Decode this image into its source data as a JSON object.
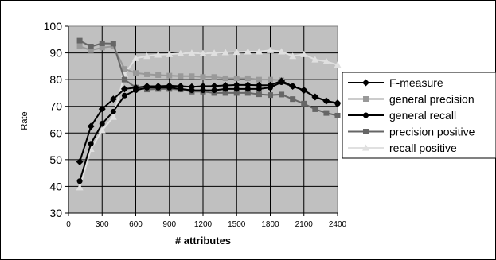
{
  "chart_data": {
    "type": "line",
    "title": "",
    "xlabel": "# attributes",
    "ylabel": "Rate",
    "xlim": [
      0,
      2400
    ],
    "ylim": [
      30,
      100
    ],
    "x_ticks": [
      "0",
      "300",
      "600",
      "900",
      "1200",
      "1500",
      "1800",
      "2100",
      "2400"
    ],
    "y_ticks": [
      "30",
      "40",
      "50",
      "60",
      "70",
      "80",
      "90",
      "100"
    ],
    "grid": true,
    "legend_position": "right",
    "x": [
      100,
      200,
      300,
      400,
      500,
      600,
      700,
      800,
      900,
      1000,
      1100,
      1200,
      1300,
      1400,
      1500,
      1600,
      1700,
      1800,
      1900,
      2000,
      2100,
      2200,
      2300,
      2400
    ],
    "series": [
      {
        "name": "F-measure",
        "color": "#000000",
        "marker": "diamond",
        "values": [
          49.2,
          62.5,
          69,
          72.7,
          76.5,
          77,
          77.5,
          77.5,
          77.7,
          77.5,
          77.3,
          77.5,
          77.6,
          77.8,
          78,
          78,
          77.9,
          77.9,
          79.5,
          77.5,
          76,
          73.5,
          72,
          71.2
        ]
      },
      {
        "name": "general precision",
        "color": "#999999",
        "marker": "square",
        "values": [
          92.5,
          91,
          92,
          92.5,
          84,
          82.5,
          82,
          81.7,
          81.5,
          81.3,
          81.3,
          81,
          81,
          80.5,
          80.5,
          80.5,
          80,
          80,
          79.8,
          null,
          null,
          null,
          null,
          null
        ]
      },
      {
        "name": "general recall",
        "color": "#000000",
        "marker": "circle",
        "values": [
          42,
          56,
          63.5,
          68,
          74,
          76,
          77,
          77,
          77,
          76.5,
          76,
          76,
          76,
          76.5,
          76.5,
          76.5,
          76.5,
          77,
          79,
          77.5,
          76,
          73.5,
          72,
          71
        ]
      },
      {
        "name": "precision positive",
        "color": "#666666",
        "marker": "square",
        "values": [
          94.6,
          92.4,
          93.6,
          93.5,
          80,
          77,
          76.3,
          76.5,
          76.5,
          76.3,
          75.5,
          75.5,
          75,
          75,
          75,
          75,
          74.5,
          74.2,
          74.4,
          72.7,
          71,
          68.9,
          67.5,
          66.5
        ]
      },
      {
        "name": "recall positive",
        "color": "#e0e0e0",
        "marker": "triangle",
        "values": [
          39.6,
          54,
          61,
          66,
          82,
          88,
          88.8,
          89.3,
          89.5,
          89.8,
          90,
          89.8,
          90,
          90.2,
          90.3,
          90.5,
          90.5,
          91,
          90.5,
          88.8,
          89.5,
          87.5,
          86.8,
          85.5
        ]
      }
    ]
  }
}
